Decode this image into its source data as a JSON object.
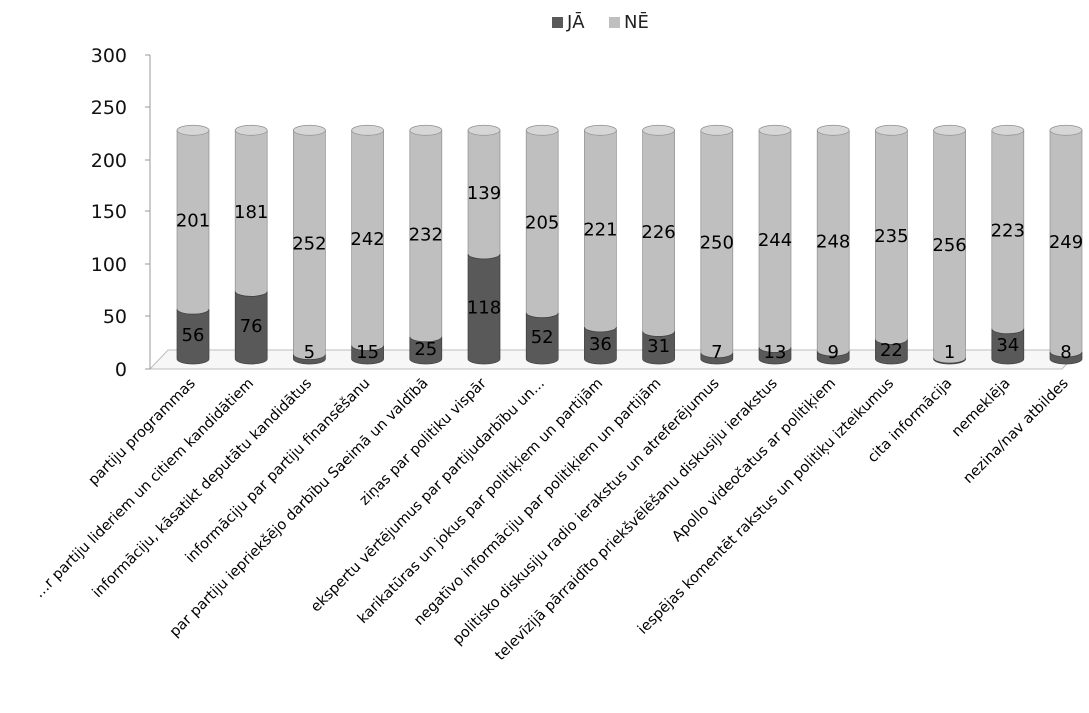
{
  "chart_data": {
    "type": "bar",
    "stacked": true,
    "style": "3d-cylinder",
    "categories": [
      "partiju programmas",
      "…r partiju lideriem un citiem kandidātiem",
      "informāciju, kāsatikt deputātu kandidātus",
      "informāciju par partiju finansēšanu",
      "par partiju iepriekšējo darbību Saeimā un valdībā",
      "ziņas par politiku vispār",
      "ekspertu vērtējumus par partijudarbību un...",
      "karikatūras un jokus par politiķiem un partijām",
      "negatīvo informāciju par politiķiem un partijām",
      "politisko diskusiju radio ierakstus un atreferējumus",
      "televīzijā pārraidīto priekšvēlēšanu diskusiju ierakstus",
      "Apollo videočatus ar politiķiem",
      "iespējas komentēt rakstus un politiķu izteikumus",
      "cita informācija",
      "nemeklēja",
      "nezina/nav atbildes"
    ],
    "series": [
      {
        "name": "JĀ",
        "color": "#595959",
        "values": [
          56,
          76,
          5,
          15,
          25,
          118,
          52,
          36,
          31,
          7,
          13,
          9,
          22,
          1,
          34,
          8
        ]
      },
      {
        "name": "NĒ",
        "color": "#bfbfbf",
        "values": [
          201,
          181,
          252,
          242,
          232,
          139,
          205,
          221,
          226,
          250,
          244,
          248,
          235,
          256,
          223,
          249
        ]
      }
    ],
    "yticks": [
      "0",
      "50",
      "100",
      "150",
      "200",
      "250",
      "300"
    ],
    "ylim": [
      0,
      300
    ],
    "legend": "top-center",
    "title": "",
    "xlabel": "",
    "ylabel": ""
  }
}
